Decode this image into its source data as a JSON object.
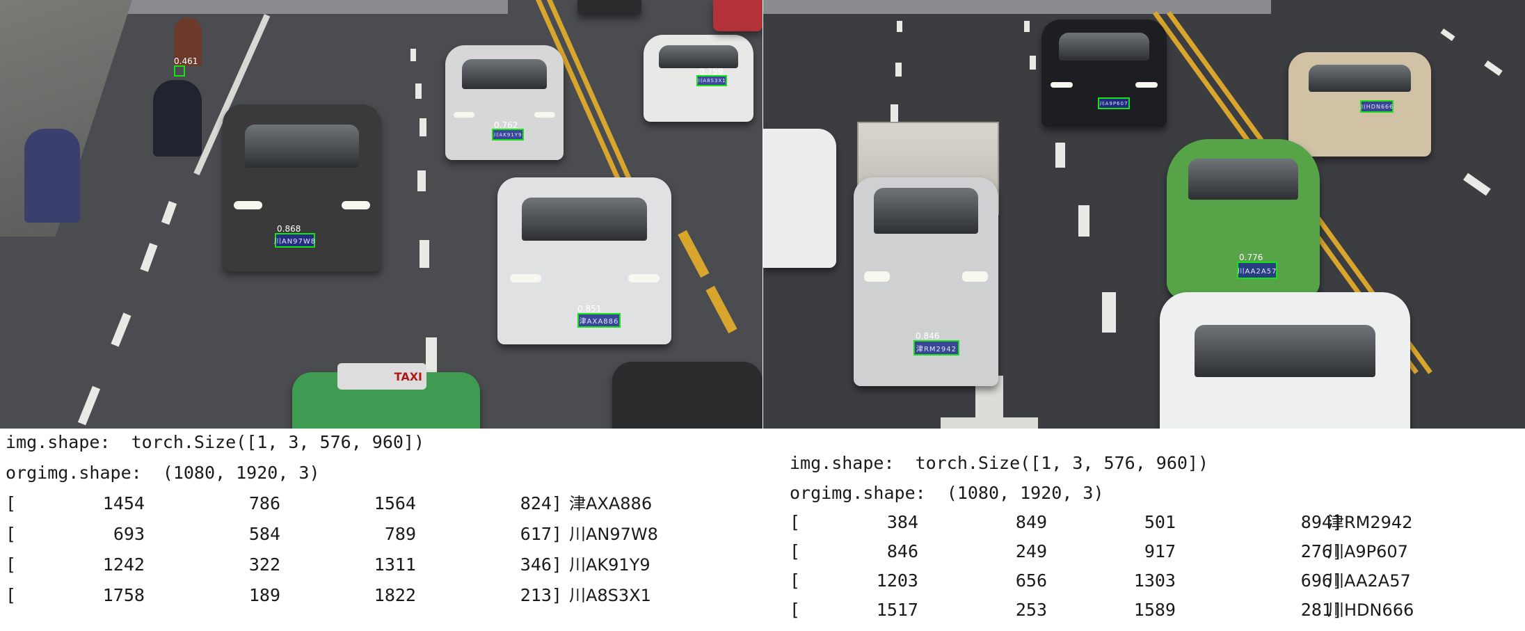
{
  "left_panel": {
    "detections": [
      {
        "score": "0.461",
        "plate": ""
      },
      {
        "score": "0.759",
        "plate": "川A8S3X1"
      },
      {
        "score": "0.762",
        "plate": "川AK91Y9"
      },
      {
        "score": "0.868",
        "plate": "川AN97W8"
      },
      {
        "score": "0.851",
        "plate": "津AXA886"
      }
    ],
    "taxi_sign": "TAXI",
    "console": {
      "img_shape": "img.shape:  torch.Size([1, 3, 576, 960])",
      "orig_shape": "orgimg.shape:  (1080, 1920, 3)",
      "rows": [
        {
          "open": "[",
          "x1": "1454",
          "y1": "786",
          "x2": "1564",
          "y2": "824]",
          "plate": "津AXA886"
        },
        {
          "open": "[",
          "x1": "693",
          "y1": "584",
          "x2": "789",
          "y2": "617]",
          "plate": "川AN97W8"
        },
        {
          "open": "[",
          "x1": "1242",
          "y1": "322",
          "x2": "1311",
          "y2": "346]",
          "plate": "川AK91Y9"
        },
        {
          "open": "[",
          "x1": "1758",
          "y1": "189",
          "x2": "1822",
          "y2": "213]",
          "plate": "川A8S3X1"
        }
      ]
    }
  },
  "right_panel": {
    "detections": [
      {
        "score": "",
        "plate": "川A9P607"
      },
      {
        "score": "",
        "plate": "川HDN666"
      },
      {
        "score": "0.776",
        "plate": "川AA2A57"
      },
      {
        "score": "0.846",
        "plate": "津RM2942"
      }
    ],
    "console": {
      "img_shape": "img.shape:  torch.Size([1, 3, 576, 960])",
      "orig_shape": "orgimg.shape:  (1080, 1920, 3)",
      "rows": [
        {
          "open": "[",
          "x1": "384",
          "y1": "849",
          "x2": "501",
          "y2": "894]",
          "plate": "津RM2942"
        },
        {
          "open": "[",
          "x1": "846",
          "y1": "249",
          "x2": "917",
          "y2": "276]",
          "plate": "川A9P607"
        },
        {
          "open": "[",
          "x1": "1203",
          "y1": "656",
          "x2": "1303",
          "y2": "696]",
          "plate": "川AA2A57"
        },
        {
          "open": "[",
          "x1": "1517",
          "y1": "253",
          "x2": "1589",
          "y2": "281]",
          "plate": "川HDN666"
        }
      ]
    }
  },
  "colors": {
    "box_border": "#19e019",
    "plate_fill": "#1e2d8c",
    "lane_yellow": "#d9a52c"
  }
}
